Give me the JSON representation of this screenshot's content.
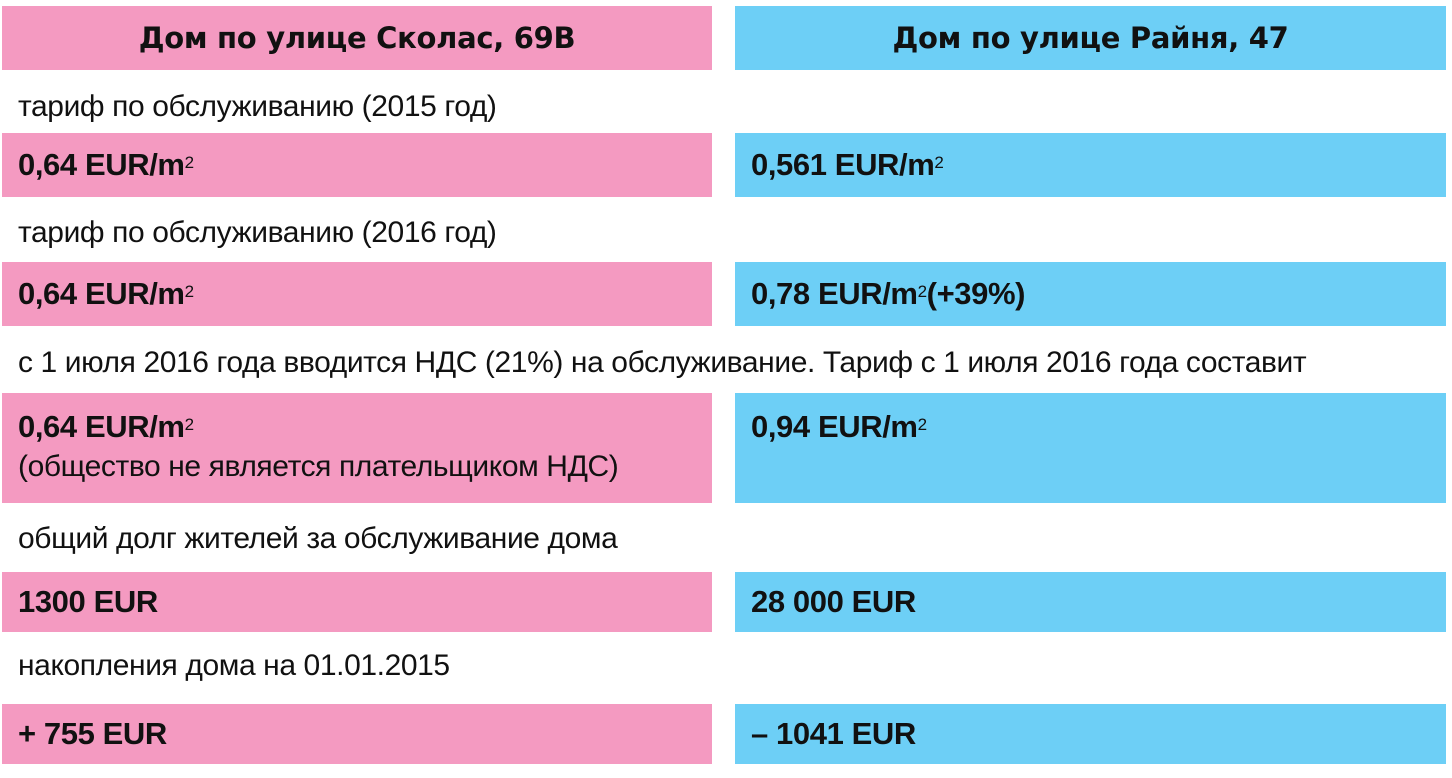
{
  "headers": {
    "left": "Дом по улице Сколас, 69В",
    "right": "Дом по улице Райня, 47"
  },
  "rows": [
    {
      "label": "тариф по обслуживанию (2015 год)",
      "left": {
        "main": "0,64 EUR/m",
        "sup": "2"
      },
      "right": {
        "main": "0,561 EUR/m",
        "sup": "2"
      }
    },
    {
      "label": "тариф по обслуживанию (2016 год)",
      "left": {
        "main": "0,64 EUR/m",
        "sup": "2"
      },
      "right": {
        "main": "0,78 EUR/m",
        "sup": "2",
        "suffix": " (+39%)"
      }
    },
    {
      "label": "с 1 июля 2016 года вводится НДС (21%) на обслуживание. Тариф с 1 июля 2016 года составит",
      "left": {
        "main": "0,64 EUR/m",
        "sup": "2",
        "note": "(общество не является плательщиком НДС)"
      },
      "right": {
        "main": "0,94 EUR/m",
        "sup": "2"
      }
    },
    {
      "label": "общий долг жителей за обслуживание дома",
      "left": {
        "main": "1300 EUR"
      },
      "right": {
        "main": "28 000 EUR"
      }
    },
    {
      "label": "накопления дома на 01.01.2015",
      "left": {
        "main": "+ 755 EUR"
      },
      "right": {
        "main": "– 1041 EUR"
      }
    }
  ],
  "colors": {
    "left_column": "#f49ac1",
    "right_column": "#6dcff6"
  }
}
